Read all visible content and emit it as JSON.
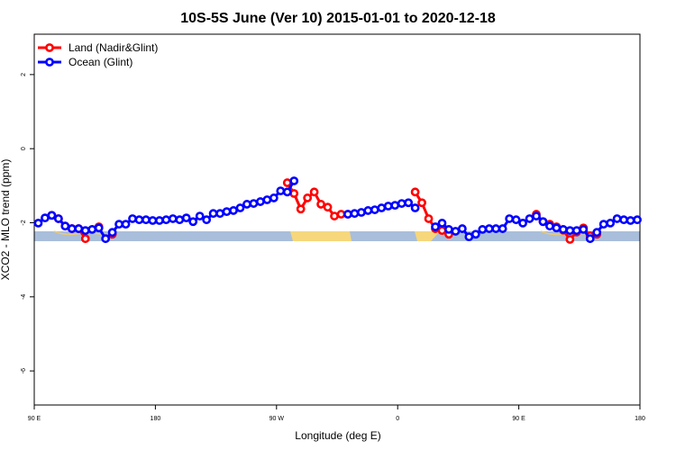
{
  "chart_data": {
    "type": "line",
    "title": "10S-5S June (Ver 10)   2015-01-01 to 2020-12-18",
    "x_label": "Longitude (deg E)",
    "y_label": "XCO2 - MLO trend (ppm)",
    "x": [
      93,
      98,
      103,
      108,
      113,
      118,
      123,
      128,
      133,
      138,
      143,
      148,
      153,
      158,
      163,
      168,
      173,
      178,
      183,
      188,
      193,
      198,
      203,
      208,
      213,
      218,
      223,
      228,
      233,
      238,
      243,
      248,
      253,
      258,
      263,
      268,
      273,
      278,
      283,
      288,
      293,
      298,
      303,
      308,
      313,
      318,
      323,
      328,
      333,
      338,
      343,
      348,
      353,
      358,
      363,
      368,
      373,
      378,
      383,
      388,
      393,
      398,
      403,
      408,
      413,
      418,
      423,
      428,
      433,
      438,
      443,
      448,
      453,
      458,
      463,
      468,
      473,
      478,
      483,
      488,
      493,
      498,
      503,
      508,
      513,
      518,
      523,
      528,
      533,
      538
    ],
    "series": [
      {
        "name": "Land (Nadir&Glint)",
        "color": "#ff0000",
        "values": [
          null,
          null,
          -1.8,
          -1.89,
          -2.09,
          -2.16,
          -2.16,
          -2.43,
          null,
          -2.11,
          null,
          -2.31,
          null,
          null,
          null,
          null,
          null,
          null,
          null,
          null,
          null,
          null,
          null,
          null,
          null,
          null,
          null,
          null,
          null,
          null,
          null,
          null,
          null,
          null,
          null,
          null,
          null,
          -0.92,
          -1.21,
          -1.63,
          -1.33,
          -1.17,
          -1.5,
          -1.58,
          -1.82,
          -1.77,
          -1.77,
          null,
          null,
          null,
          null,
          null,
          null,
          null,
          null,
          null,
          -1.17,
          -1.46,
          -1.89,
          -2.16,
          -2.21,
          -2.31,
          null,
          null,
          null,
          null,
          null,
          null,
          null,
          null,
          null,
          null,
          null,
          null,
          -1.77,
          -1.97,
          -2.04,
          -2.11,
          -2.2,
          -2.45,
          -2.25,
          -2.14,
          -2.35,
          -2.31,
          null,
          null,
          null,
          null,
          null,
          null
        ]
      },
      {
        "name": "Ocean (Glint)",
        "color": "#0000ff",
        "values": [
          -2.01,
          -1.87,
          -1.8,
          -1.89,
          -2.09,
          -2.16,
          -2.16,
          -2.21,
          -2.18,
          -2.14,
          -2.43,
          -2.26,
          -2.04,
          -2.04,
          -1.89,
          -1.92,
          -1.92,
          -1.94,
          -1.94,
          -1.92,
          -1.89,
          -1.92,
          -1.87,
          -1.97,
          -1.82,
          -1.92,
          -1.75,
          -1.75,
          -1.7,
          -1.67,
          -1.6,
          -1.5,
          -1.48,
          -1.43,
          -1.38,
          -1.33,
          -1.14,
          -1.17,
          -0.87,
          null,
          null,
          null,
          null,
          null,
          null,
          null,
          -1.77,
          -1.75,
          -1.72,
          -1.67,
          -1.65,
          -1.6,
          -1.55,
          -1.53,
          -1.48,
          -1.46,
          -1.6,
          null,
          null,
          -2.11,
          -2.01,
          -2.18,
          -2.23,
          -2.16,
          -2.38,
          -2.31,
          -2.18,
          -2.16,
          -2.16,
          -2.16,
          -1.89,
          -1.92,
          -2.01,
          -1.89,
          -1.82,
          -1.97,
          -2.09,
          -2.14,
          -2.18,
          -2.21,
          -2.21,
          -2.18,
          -2.43,
          -2.26,
          -2.04,
          -2.01,
          -1.89,
          -1.92,
          -1.94,
          -1.92
        ]
      }
    ],
    "xlim": [
      90,
      540
    ],
    "xticks": [
      {
        "value": 90,
        "label": "90 E"
      },
      180,
      {
        "value": 270,
        "label": "90 W"
      },
      {
        "value": 360,
        "label": "0"
      },
      {
        "value": 450,
        "label": "90 E"
      },
      {
        "value": 540,
        "label": "180"
      }
    ],
    "ylim": [
      -6.92,
      3.09
    ],
    "yticks": [
      -6,
      -4,
      -2,
      0,
      2
    ],
    "legend": "top-left"
  }
}
